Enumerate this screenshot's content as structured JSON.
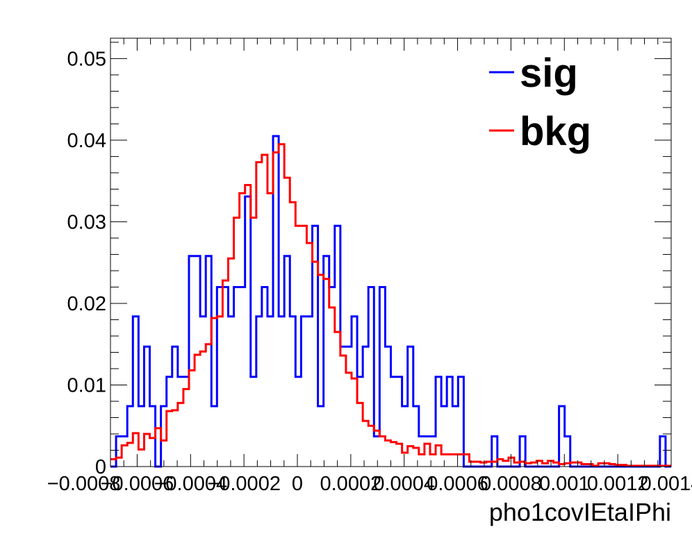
{
  "chart_data": {
    "type": "histogram",
    "xlabel": "pho1covIEtaIPhi",
    "ylabel": "",
    "xlim": [
      -0.0007,
      0.0014
    ],
    "ylim": [
      0,
      0.0525
    ],
    "x_tick_labels": [
      {
        "value": -0.0008,
        "label": "−0.0008"
      },
      {
        "value": -0.0006,
        "label": "−0.0006"
      },
      {
        "value": -0.0004,
        "label": "−0.0004"
      },
      {
        "value": -0.0002,
        "label": "−0.0002"
      },
      {
        "value": 0,
        "label": "0"
      },
      {
        "value": 0.0002,
        "label": "0.0002"
      },
      {
        "value": 0.0004,
        "label": "0.0004"
      },
      {
        "value": 0.0006,
        "label": "0.0006"
      },
      {
        "value": 0.0008,
        "label": "0.0008"
      },
      {
        "value": 0.001,
        "label": "0.001"
      },
      {
        "value": 0.0012,
        "label": "0.0012"
      },
      {
        "value": 0.0014,
        "label": "0.0014"
      }
    ],
    "y_tick_labels": [
      {
        "value": 0,
        "label": "0"
      },
      {
        "value": 0.01,
        "label": "0.01"
      },
      {
        "value": 0.02,
        "label": "0.02"
      },
      {
        "value": 0.03,
        "label": "0.03"
      },
      {
        "value": 0.04,
        "label": "0.04"
      },
      {
        "value": 0.05,
        "label": "0.05"
      }
    ],
    "bins": {
      "start": -0.0007,
      "end": 0.0014,
      "count": 100
    },
    "legend_position": "top-right",
    "series": [
      {
        "name": "sig",
        "color": "#0000ff",
        "values": [
          0,
          0.0037,
          0.0037,
          0.0074,
          0.0184,
          0.0074,
          0.0147,
          0.0074,
          0,
          0.0074,
          0.011,
          0.0147,
          0.011,
          0.011,
          0.0258,
          0.0258,
          0.0184,
          0.0258,
          0.0074,
          0.022,
          0.022,
          0.0184,
          0.022,
          0.022,
          0.0331,
          0.011,
          0.0184,
          0.022,
          0.0184,
          0.0405,
          0.0184,
          0.0258,
          0.0184,
          0.011,
          0.0184,
          0.0184,
          0.0295,
          0.0074,
          0.0258,
          0.022,
          0.0295,
          0.0147,
          0.0147,
          0.0184,
          0.011,
          0.0147,
          0.022,
          0.0037,
          0.022,
          0.0147,
          0.011,
          0.011,
          0.0074,
          0.0147,
          0.0074,
          0.0037,
          0.0037,
          0.0037,
          0.011,
          0.0074,
          0.011,
          0.0074,
          0.011,
          0,
          0,
          0,
          0,
          0,
          0.0037,
          0,
          0,
          0,
          0,
          0.0037,
          0,
          0,
          0,
          0,
          0,
          0,
          0.0074,
          0.0037,
          0,
          0,
          0,
          0,
          0,
          0,
          0,
          0,
          0,
          0,
          0,
          0,
          0,
          0,
          0,
          0,
          0.0037,
          0
        ]
      },
      {
        "name": "bkg",
        "color": "#ff0000",
        "values": [
          0.0009,
          0.0011,
          0.0026,
          0.0029,
          0.0041,
          0.0021,
          0.004,
          0.0035,
          0.0047,
          0.0032,
          0.0068,
          0.0069,
          0.0078,
          0.0095,
          0.0118,
          0.0137,
          0.0141,
          0.015,
          0.0182,
          0.0184,
          0.0228,
          0.0255,
          0.0305,
          0.0335,
          0.0345,
          0.0305,
          0.0373,
          0.0382,
          0.0335,
          0.0385,
          0.0395,
          0.0354,
          0.0324,
          0.0295,
          0.0295,
          0.0274,
          0.0251,
          0.0235,
          0.023,
          0.0195,
          0.0165,
          0.0136,
          0.0115,
          0.0108,
          0.0078,
          0.0056,
          0.005,
          0.0044,
          0.0037,
          0.0032,
          0.003,
          0.0028,
          0.0017,
          0.0025,
          0.0023,
          0.0015,
          0.0028,
          0.0015,
          0.0026,
          0.0015,
          0.0015,
          0.0015,
          0.0015,
          0.0015,
          0.0006,
          0.0006,
          0.0005,
          0.0006,
          0.0006,
          0.0009,
          0.0007,
          0.0011,
          0.0005,
          0.0006,
          0.0004,
          0.0005,
          0.0007,
          0.0004,
          0.0007,
          0.0005,
          0.0003,
          0.0004,
          0.0005,
          0.0005,
          0.0003,
          0.0003,
          0.0001,
          0.0004,
          0.0004,
          0.0003,
          0.0002,
          0.0002,
          0.0001,
          0.0001,
          0.0001,
          0.0001,
          0.0001,
          0.0001,
          0.0001,
          0.0001
        ]
      }
    ]
  }
}
